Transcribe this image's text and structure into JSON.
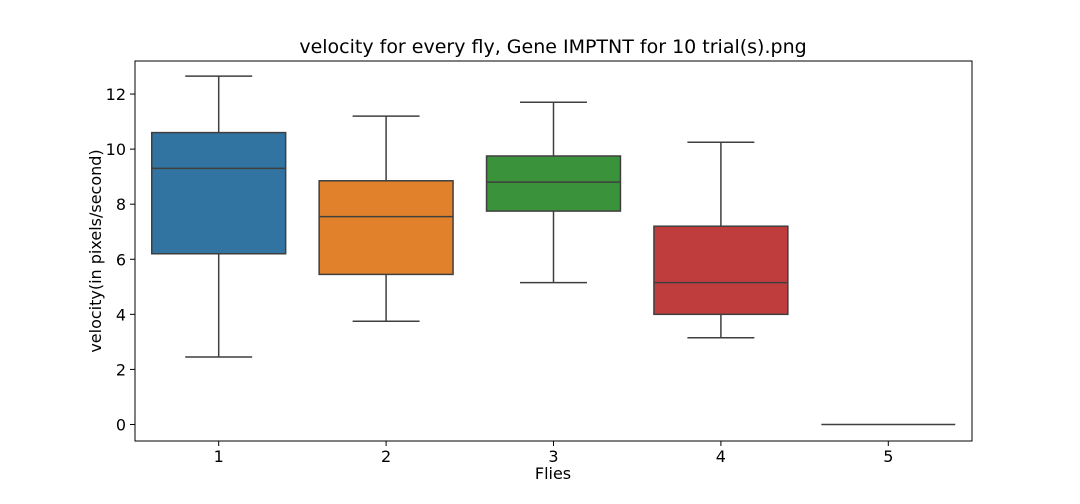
{
  "chart_data": {
    "type": "box",
    "title": "velocity for every fly, Gene IMPTNT for 10 trial(s).png",
    "xlabel": "Flies",
    "ylabel": "velocity(in pixels/second)",
    "ylim": [
      -0.6,
      13.2
    ],
    "yticks": [
      0,
      2,
      4,
      6,
      8,
      10,
      12
    ],
    "grid": false,
    "categories": [
      "1",
      "2",
      "3",
      "4",
      "5"
    ],
    "boxes": [
      {
        "category": "1",
        "whisker_low": 2.45,
        "q1": 6.2,
        "median": 9.3,
        "q3": 10.6,
        "whisker_high": 12.65,
        "color": "#3274a1"
      },
      {
        "category": "2",
        "whisker_low": 3.75,
        "q1": 5.45,
        "median": 7.55,
        "q3": 8.85,
        "whisker_high": 11.2,
        "color": "#e1812c"
      },
      {
        "category": "3",
        "whisker_low": 5.15,
        "q1": 7.75,
        "median": 8.8,
        "q3": 9.75,
        "whisker_high": 11.7,
        "color": "#3a923a"
      },
      {
        "category": "4",
        "whisker_low": 3.15,
        "q1": 4.0,
        "median": 5.15,
        "q3": 7.2,
        "whisker_high": 10.25,
        "color": "#c03d3e"
      },
      {
        "category": "5",
        "whisker_low": 0.0,
        "q1": 0.0,
        "median": 0.0,
        "q3": 0.0,
        "whisker_high": 0.0,
        "color": "#9372b2"
      }
    ]
  }
}
